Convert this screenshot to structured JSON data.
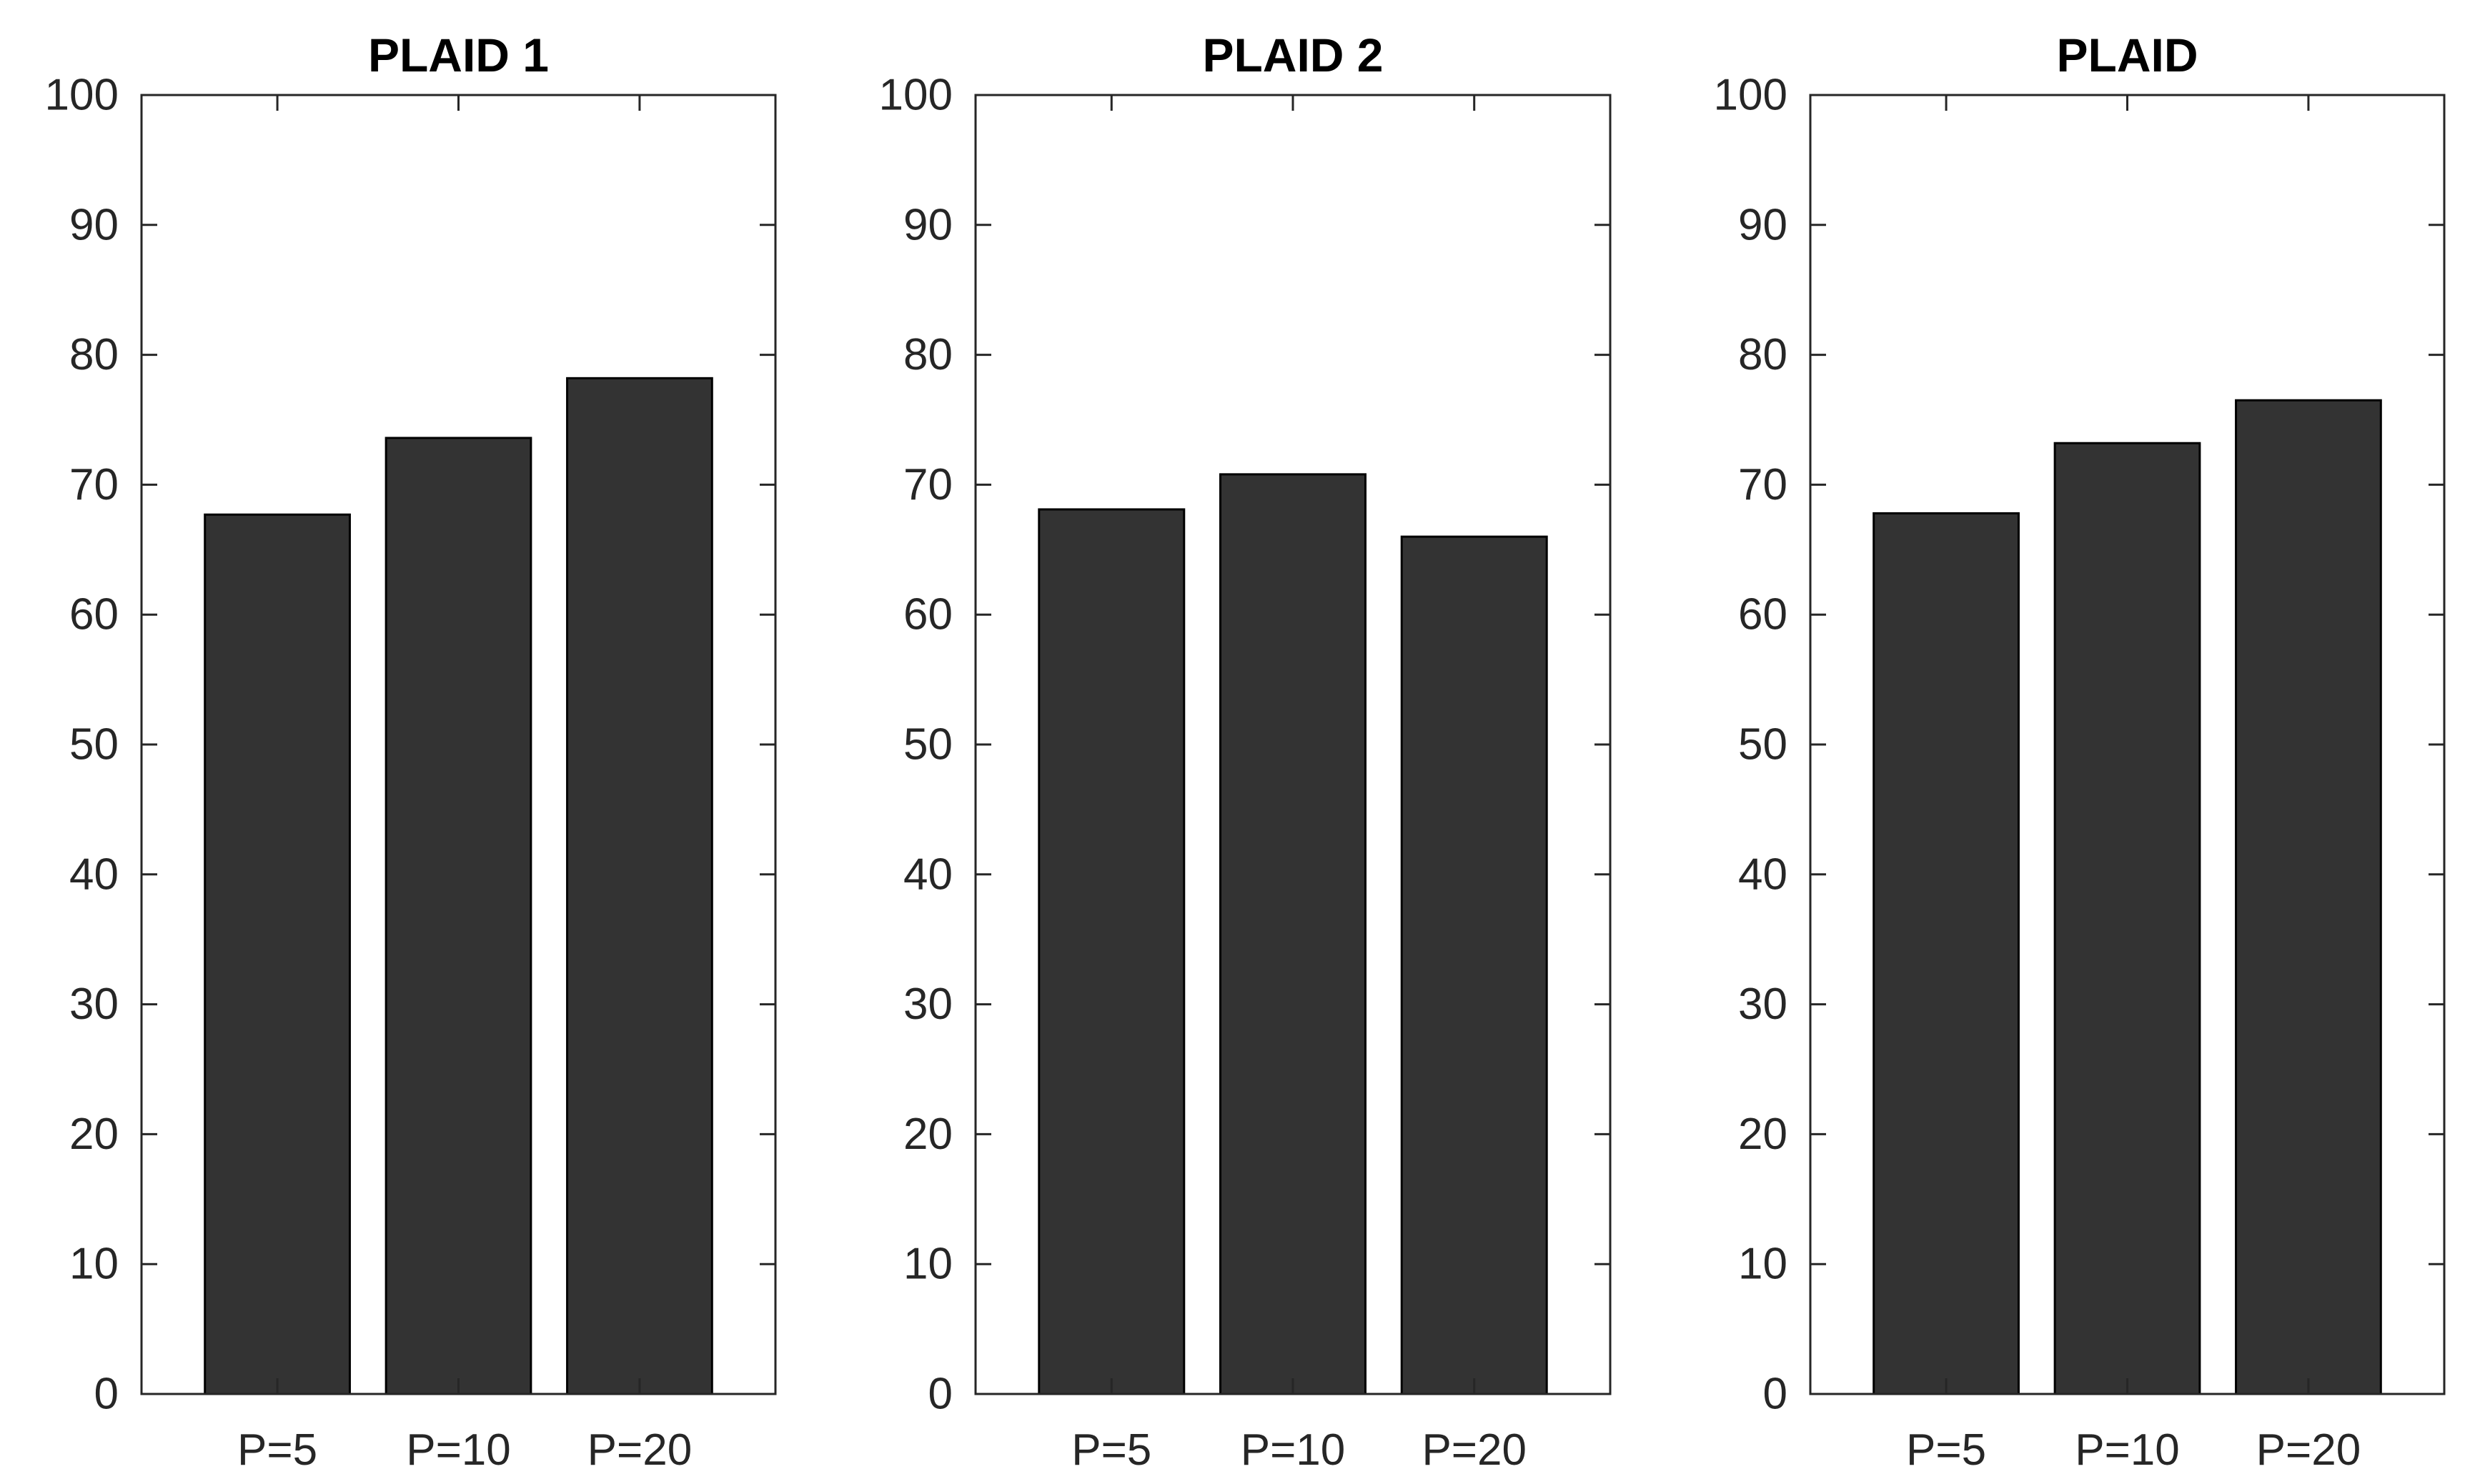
{
  "chart_data": [
    {
      "type": "bar",
      "title": "PLAID 1",
      "categories": [
        "P=5",
        "P=10",
        "P=20"
      ],
      "values": [
        67.7,
        73.6,
        78.2
      ],
      "ylim": [
        0,
        100
      ],
      "yticks": [
        "0",
        "10",
        "20",
        "30",
        "40",
        "50",
        "60",
        "70",
        "80",
        "90",
        "100"
      ],
      "xlabel": "",
      "ylabel": "",
      "grid": false,
      "bar_color": "#333333"
    },
    {
      "type": "bar",
      "title": "PLAID 2",
      "categories": [
        "P=5",
        "P=10",
        "P=20"
      ],
      "values": [
        68.1,
        70.8,
        66.0
      ],
      "ylim": [
        0,
        100
      ],
      "yticks": [
        "0",
        "10",
        "20",
        "30",
        "40",
        "50",
        "60",
        "70",
        "80",
        "90",
        "100"
      ],
      "xlabel": "",
      "ylabel": "",
      "grid": false,
      "bar_color": "#333333"
    },
    {
      "type": "bar",
      "title": "PLAID",
      "categories": [
        "P=5",
        "P=10",
        "P=20"
      ],
      "values": [
        67.8,
        73.2,
        76.5
      ],
      "ylim": [
        0,
        100
      ],
      "yticks": [
        "0",
        "10",
        "20",
        "30",
        "40",
        "50",
        "60",
        "70",
        "80",
        "90",
        "100"
      ],
      "xlabel": "",
      "ylabel": "",
      "grid": false,
      "bar_color": "#333333"
    }
  ]
}
